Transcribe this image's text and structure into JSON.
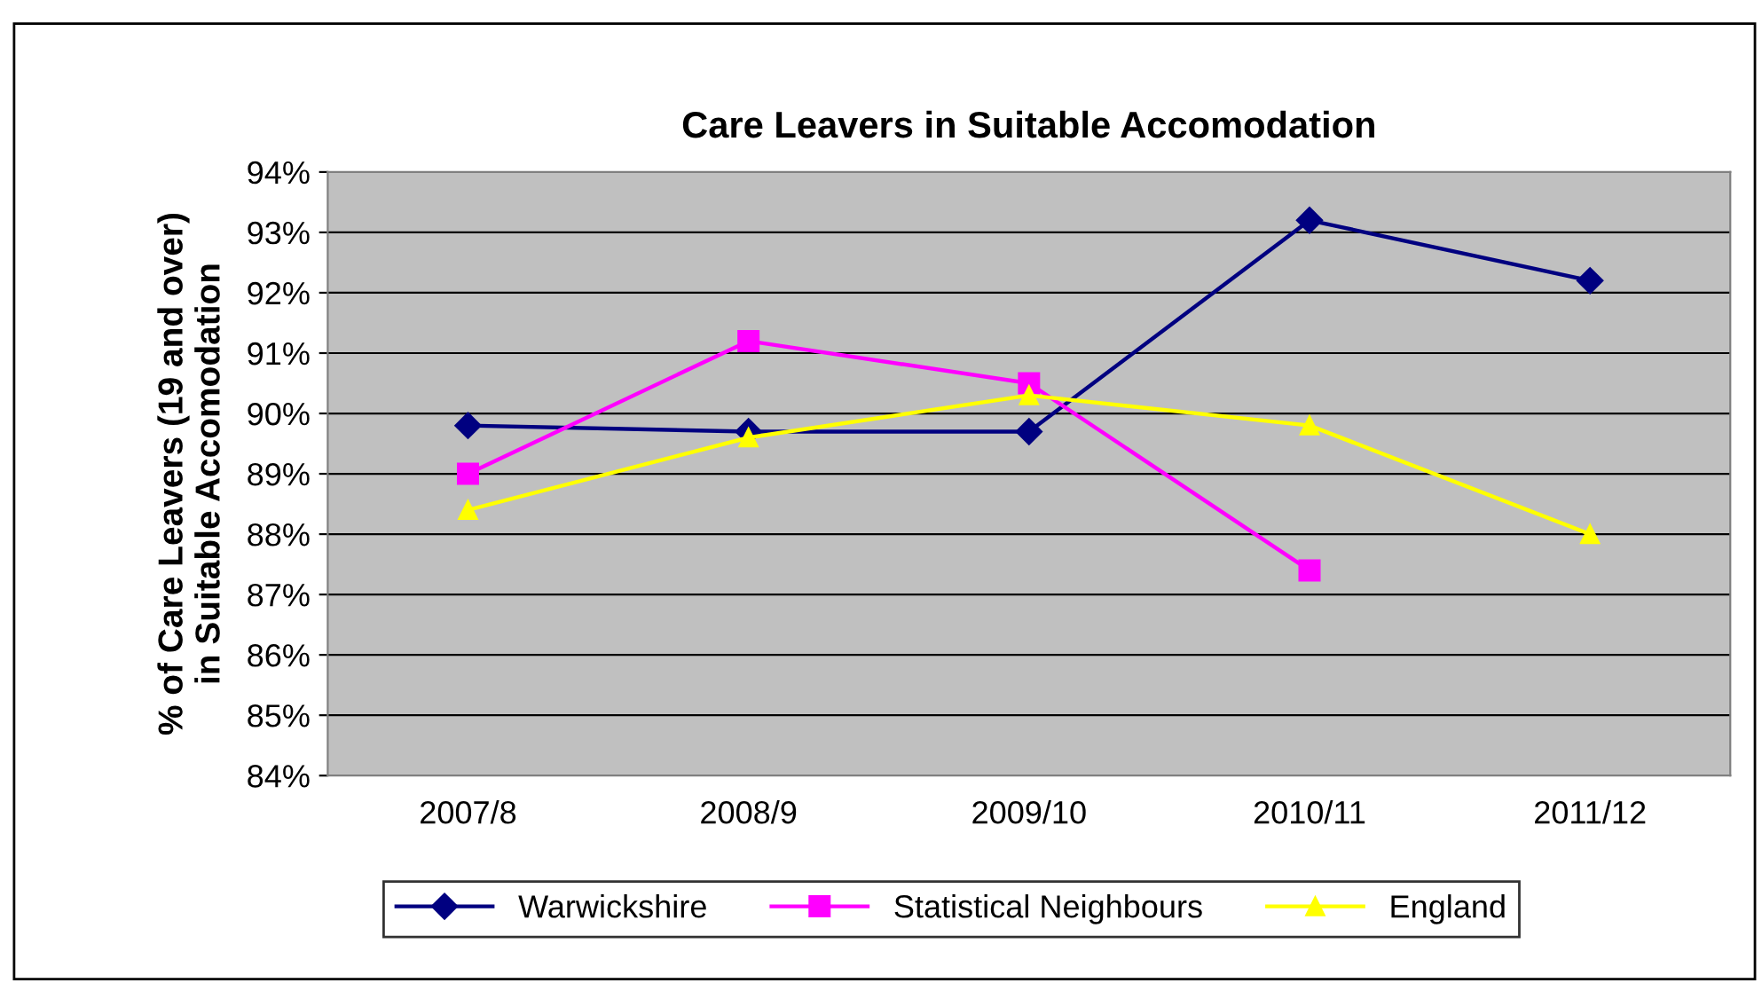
{
  "chart_data": {
    "type": "line",
    "title": "Care Leavers in Suitable Accomodation",
    "ylabel": "% of Care Leavers (19 and over)\nin Suitable Accomodation",
    "categories": [
      "2007/8",
      "2008/9",
      "2009/10",
      "2010/11",
      "2011/12"
    ],
    "series": [
      {
        "name": "Warwickshire",
        "color": "#000080",
        "marker": "diamond",
        "values": [
          89.8,
          89.7,
          89.7,
          93.2,
          92.2
        ]
      },
      {
        "name": "Statistical Neighbours",
        "color": "#ff00ff",
        "marker": "square",
        "values": [
          89.0,
          91.2,
          90.5,
          87.4,
          null
        ]
      },
      {
        "name": "England",
        "color": "#ffff00",
        "marker": "triangle",
        "values": [
          88.4,
          89.6,
          90.3,
          89.8,
          88.0
        ]
      }
    ],
    "ylim": [
      84,
      94
    ],
    "yticks": [
      {
        "value": 84,
        "label": "84%"
      },
      {
        "value": 85,
        "label": "85%"
      },
      {
        "value": 86,
        "label": "86%"
      },
      {
        "value": 87,
        "label": "87%"
      },
      {
        "value": 88,
        "label": "88%"
      },
      {
        "value": 89,
        "label": "89%"
      },
      {
        "value": 90,
        "label": "90%"
      },
      {
        "value": 91,
        "label": "91%"
      },
      {
        "value": 92,
        "label": "92%"
      },
      {
        "value": 93,
        "label": "93%"
      },
      {
        "value": 94,
        "label": "94%"
      }
    ],
    "grid": "y",
    "legend": "bottom"
  }
}
